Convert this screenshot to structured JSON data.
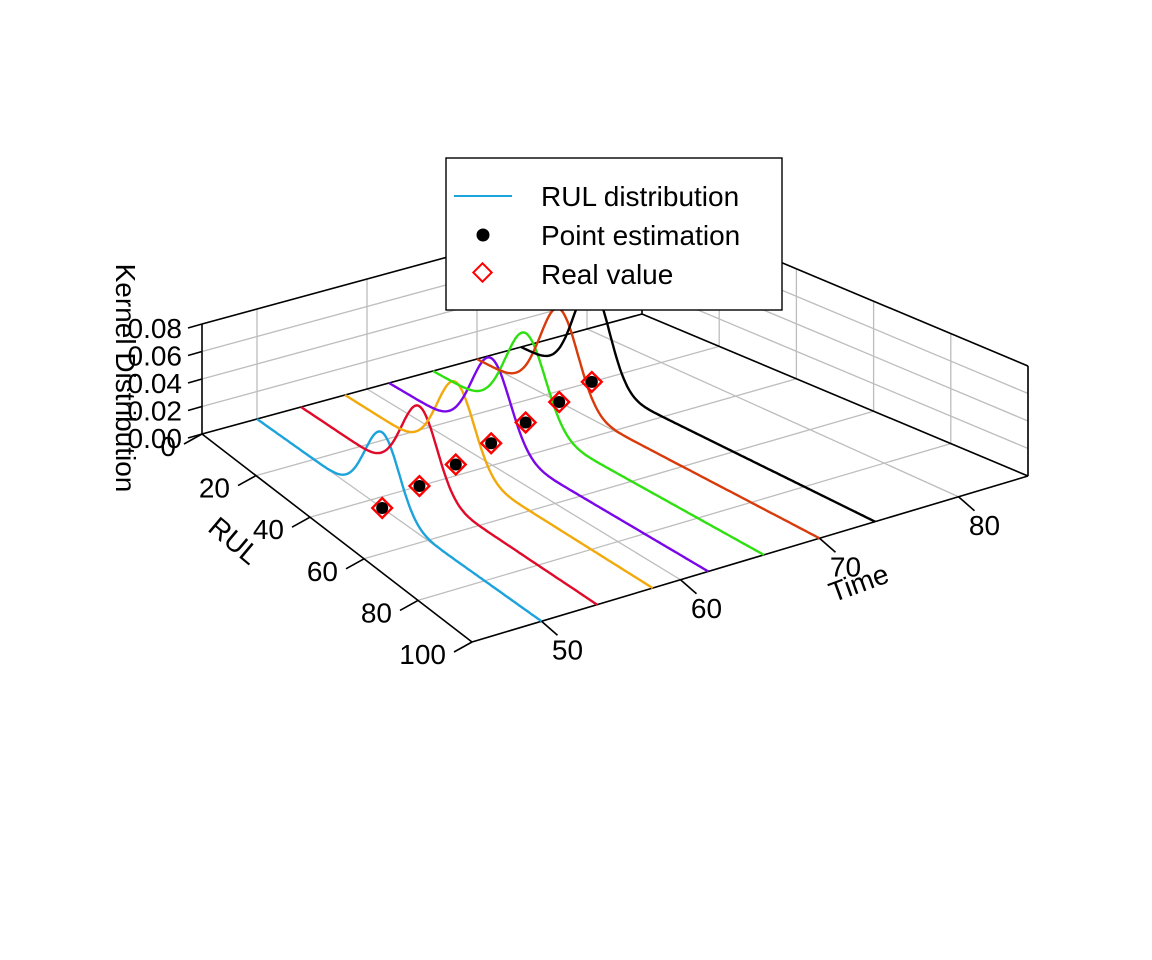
{
  "chart_data": {
    "type": "line",
    "title": "",
    "xlabel": "Time",
    "ylabel": "RUL",
    "zlabel": "Kernel Distribution",
    "xlim": [
      45,
      85
    ],
    "ylim": [
      0,
      100
    ],
    "zlim": [
      0,
      0.08
    ],
    "x_ticks": [
      "50",
      "60",
      "70",
      "80"
    ],
    "y_ticks": [
      "0",
      "20",
      "40",
      "60",
      "80",
      "100"
    ],
    "z_ticks": [
      "0.00",
      "0.02",
      "0.04",
      "0.06",
      "0.08"
    ],
    "grid": true,
    "legend": {
      "placement": "top-center",
      "entries": [
        {
          "label": "RUL distribution",
          "kind": "line",
          "color": "#1ca3dc"
        },
        {
          "label": "Point estimation",
          "kind": "dot",
          "color": "#000000"
        },
        {
          "label": "Real value",
          "kind": "diamond",
          "color": "#ff0000"
        }
      ]
    },
    "series": [
      {
        "time": 50,
        "color": "#1ca3dc",
        "mean": 44,
        "sd": 6,
        "peak": 0.055,
        "point_estimate": 44,
        "real_value": 44
      },
      {
        "time": 54,
        "color": "#e00a2a",
        "mean": 40,
        "sd": 6,
        "peak": 0.058,
        "point_estimate": 40,
        "real_value": 40
      },
      {
        "time": 58,
        "color": "#f2a90c",
        "mean": 36,
        "sd": 6,
        "peak": 0.06,
        "point_estimate": 36,
        "real_value": 36
      },
      {
        "time": 62,
        "color": "#7a07ea",
        "mean": 32,
        "sd": 6,
        "peak": 0.062,
        "point_estimate": 32,
        "real_value": 32
      },
      {
        "time": 66,
        "color": "#2fe010",
        "mean": 28,
        "sd": 6,
        "peak": 0.065,
        "point_estimate": 28,
        "real_value": 28
      },
      {
        "time": 70,
        "color": "#d83a0a",
        "mean": 24,
        "sd": 5.5,
        "peak": 0.068,
        "point_estimate": 24,
        "real_value": 24
      },
      {
        "time": 74,
        "color": "#000000",
        "mean": 20,
        "sd": 5,
        "peak": 0.07,
        "point_estimate": 20,
        "real_value": 20
      }
    ]
  }
}
